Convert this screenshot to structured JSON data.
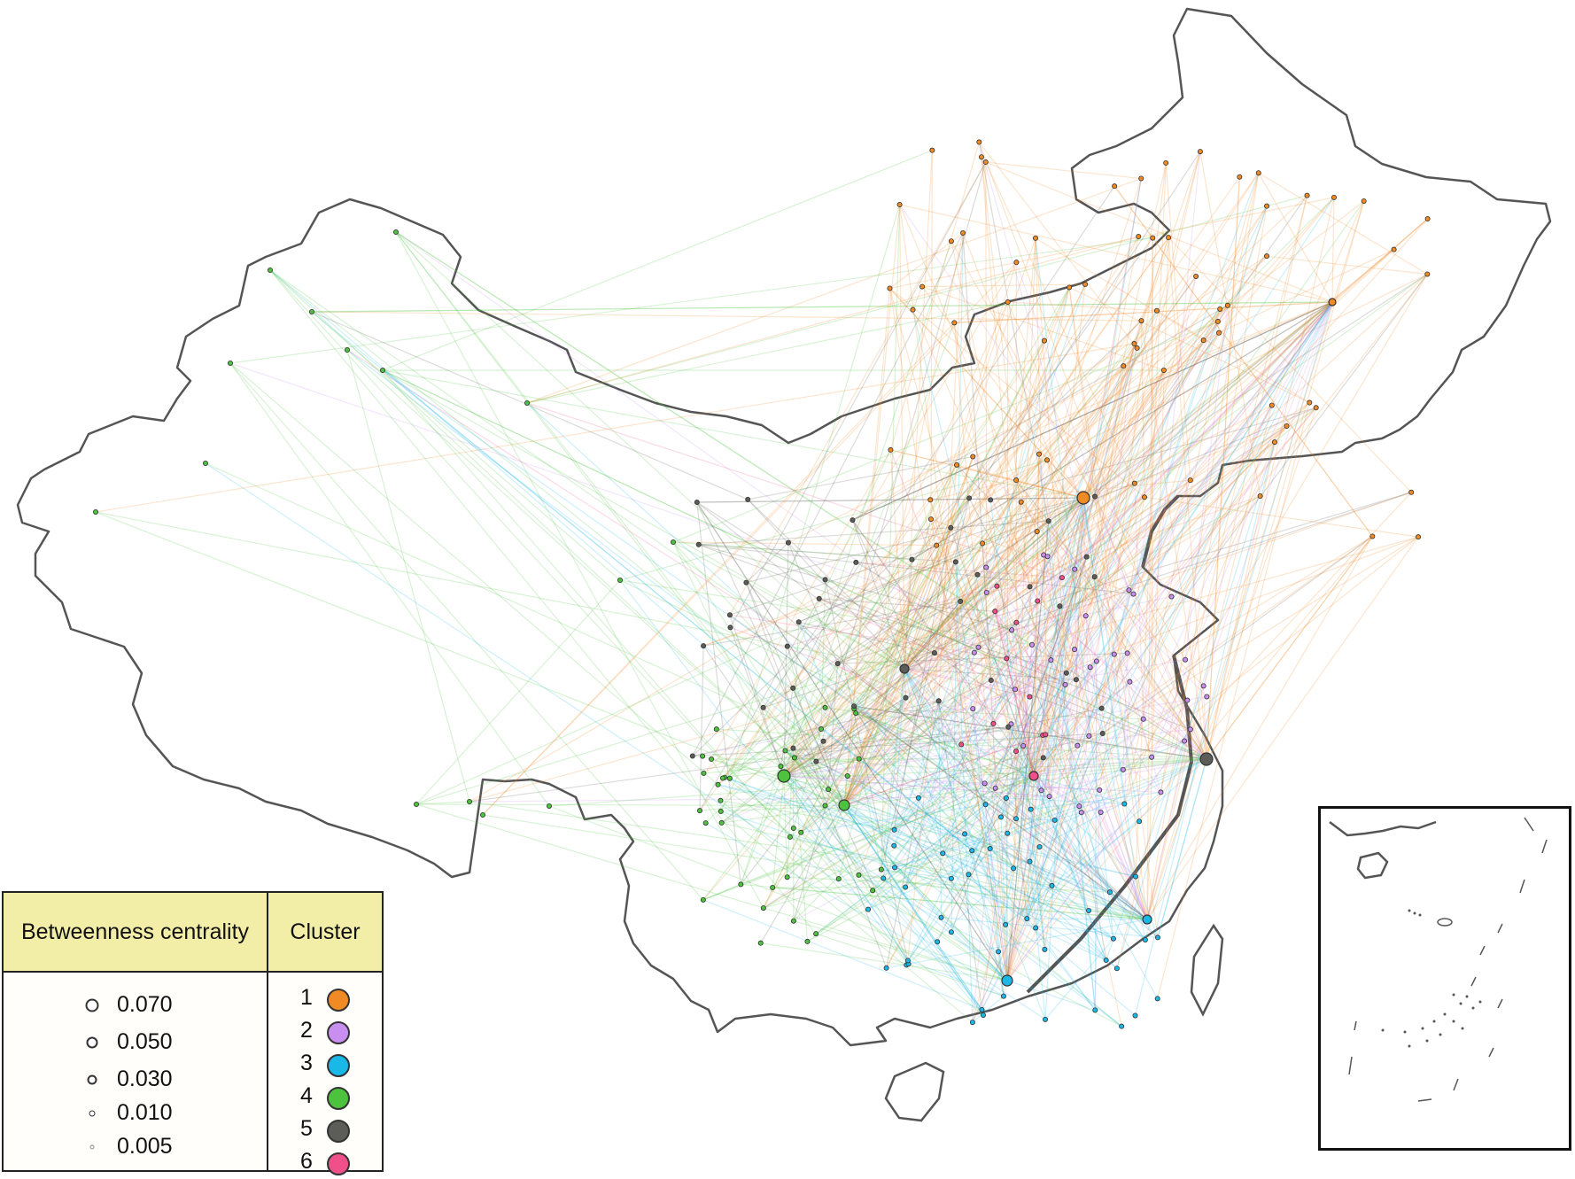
{
  "legend": {
    "centrality_header": "Betweenness centrality",
    "cluster_header": "Cluster",
    "centrality_values": [
      "0.070",
      "0.050",
      "0.030",
      "0.010",
      "0.005"
    ],
    "centrality_numeric": [
      0.07,
      0.05,
      0.03,
      0.01,
      0.005
    ],
    "clusters": [
      {
        "label": "1",
        "color": "#f08a24"
      },
      {
        "label": "2",
        "color": "#c98ff0"
      },
      {
        "label": "3",
        "color": "#1ab8e6"
      },
      {
        "label": "4",
        "color": "#4cc23e"
      },
      {
        "label": "5",
        "color": "#5c5c58"
      },
      {
        "label": "6",
        "color": "#f0508a"
      }
    ]
  },
  "colors": {
    "border": "#555555",
    "coast": "#555555",
    "inset_frame": "#111111"
  },
  "icons": {
    "map": "china-outline-map",
    "inset": "south-china-sea-inset-map"
  }
}
